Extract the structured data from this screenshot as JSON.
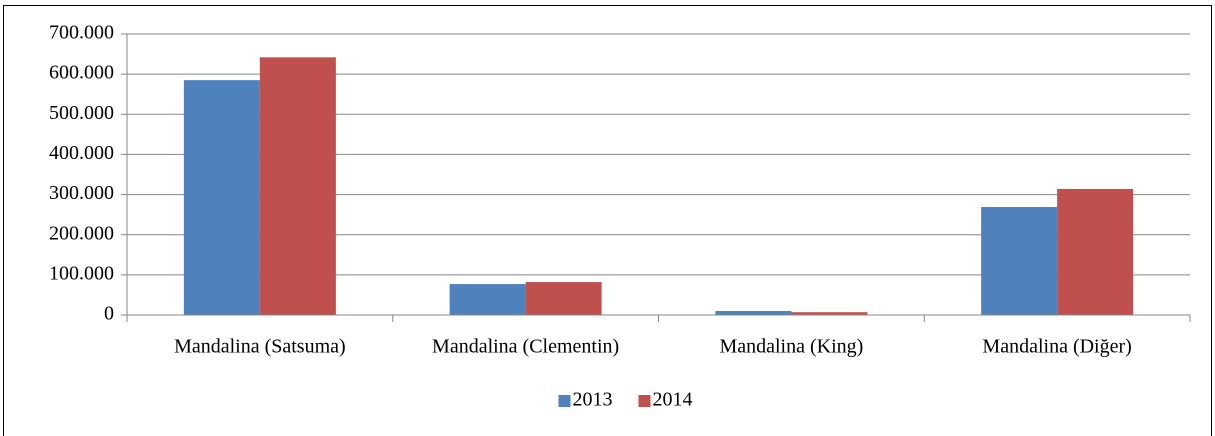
{
  "chart_data": {
    "type": "bar",
    "categories": [
      "Mandalina (Satsuma)",
      "Mandalina (Clementin)",
      "Mandalina (King)",
      "Mandalina (Diğer)"
    ],
    "series": [
      {
        "name": "2013",
        "color": "#4f81bd",
        "values": [
          585000,
          77000,
          10000,
          269000
        ]
      },
      {
        "name": "2014",
        "color": "#c0504d",
        "values": [
          642000,
          82000,
          7000,
          314000
        ]
      }
    ],
    "ylim": [
      0,
      700000
    ],
    "yticks": [
      0,
      {
        "value": 100000,
        "label": "100.000"
      },
      {
        "value": 200000,
        "label": "200.000"
      },
      {
        "value": 300000,
        "label": "300.000"
      },
      {
        "value": 400000,
        "label": "400.000"
      },
      {
        "value": 500000,
        "label": "500.000"
      },
      {
        "value": 600000,
        "label": "600.000"
      },
      {
        "value": 700000,
        "label": "700.000"
      }
    ],
    "grid": true,
    "legend": "bottom"
  }
}
